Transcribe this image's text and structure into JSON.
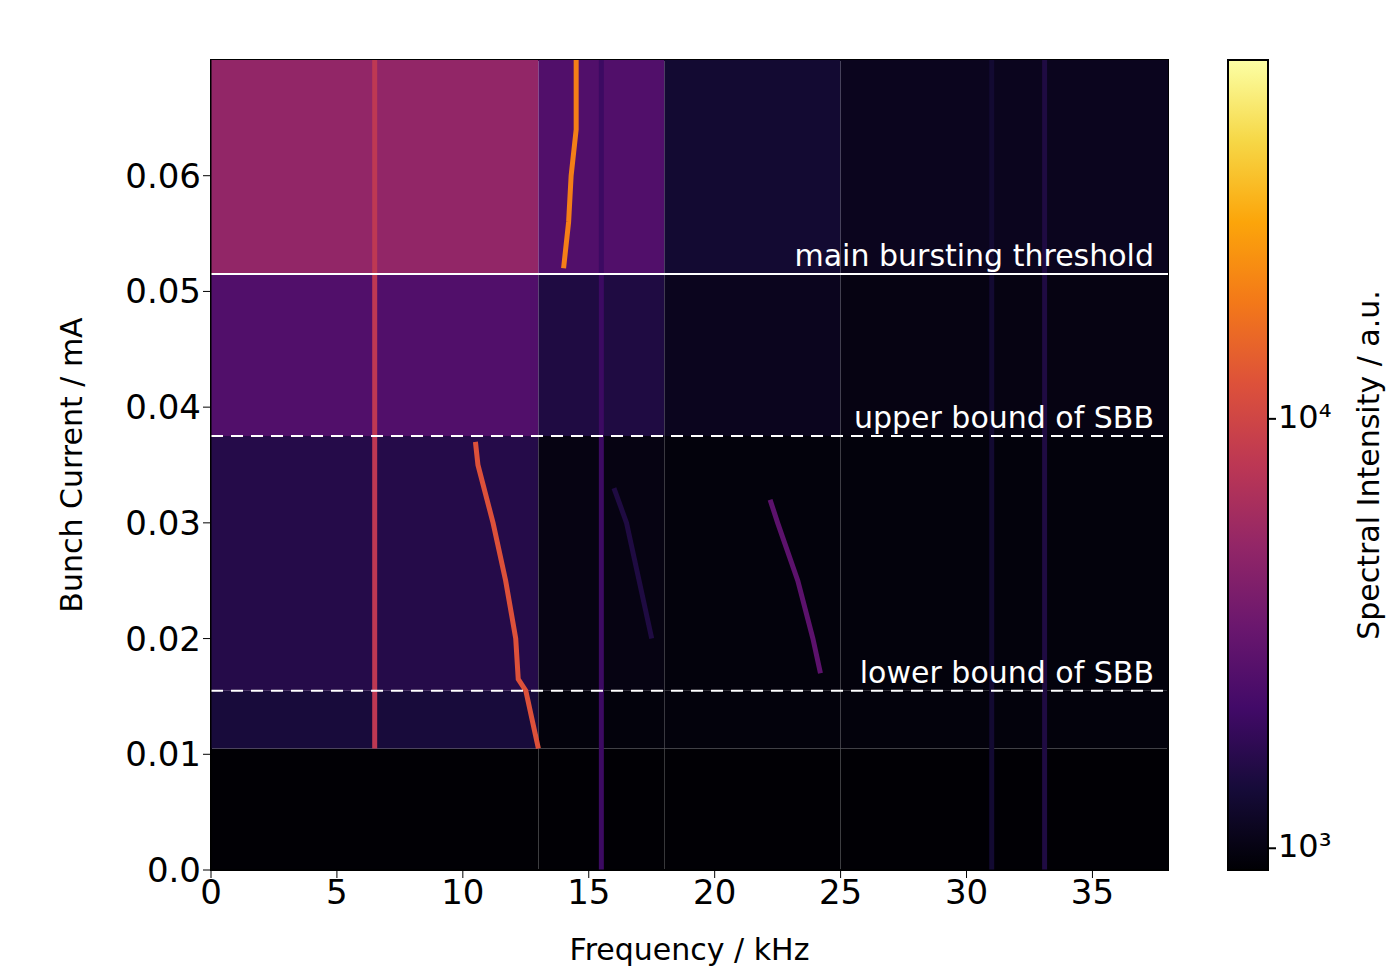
{
  "chart_data": {
    "type": "heatmap",
    "x_label": "Frequency / kHz",
    "y_label": "Bunch Current / mA",
    "xlim": [
      0,
      38
    ],
    "xticks": [
      0,
      5,
      10,
      15,
      20,
      25,
      30,
      35
    ],
    "ylim": [
      0,
      0.07
    ],
    "yticks": [
      {
        "value": 0,
        "label": "0.0"
      },
      0.01,
      0.02,
      0.03,
      0.04,
      0.05,
      0.06
    ],
    "x_edges": [
      0,
      13,
      18,
      25,
      38
    ],
    "y_edges": [
      0,
      0.0105,
      0.0155,
      0.0375,
      0.0515,
      0.07
    ],
    "cells": [
      [
        900,
        900,
        900,
        900
      ],
      [
        1400,
        950,
        950,
        950
      ],
      [
        1600,
        1000,
        950,
        950
      ],
      [
        2500,
        1500,
        1100,
        1000
      ],
      [
        5000,
        2500,
        1300,
        1100
      ]
    ],
    "lines": [
      {
        "x": [
          6.5,
          6.5
        ],
        "y": [
          0.0105,
          0.07
        ],
        "intensity": 8000
      },
      {
        "x": [
          15.5,
          15.5
        ],
        "y": [
          0,
          0.07
        ],
        "intensity": 2000
      },
      {
        "x": [
          31,
          31
        ],
        "y": [
          0,
          0.07
        ],
        "intensity": 1300
      },
      {
        "x": [
          33.1,
          33.1
        ],
        "y": [
          0,
          0.07
        ],
        "intensity": 1500
      },
      {
        "x": [
          13,
          12.5,
          12.2,
          12.1,
          11.7,
          11.2,
          10.6,
          10.5
        ],
        "y": [
          0.0105,
          0.0155,
          0.0165,
          0.02,
          0.025,
          0.03,
          0.035,
          0.037
        ],
        "intensity": 12000
      },
      {
        "x": [
          24.2,
          23.9,
          23.3,
          22.5,
          22.2
        ],
        "y": [
          0.017,
          0.02,
          0.025,
          0.03,
          0.032
        ],
        "intensity": 2800
      },
      {
        "x": [
          17.5,
          17,
          16.5,
          16
        ],
        "y": [
          0.02,
          0.025,
          0.03,
          0.033
        ],
        "intensity": 1500
      },
      {
        "x": [
          14,
          14.2,
          14.3,
          14.5,
          14.5
        ],
        "y": [
          0.052,
          0.056,
          0.06,
          0.064,
          0.07
        ],
        "intensity": 20000
      }
    ],
    "annotations": [
      {
        "text": "main bursting threshold",
        "y": 0.0515,
        "line_style": "solid"
      },
      {
        "text": "upper bound of SBB",
        "y": 0.0375,
        "line_style": "dashed"
      },
      {
        "text": "lower bound of SBB",
        "y": 0.0155,
        "line_style": "dashed"
      }
    ],
    "colorbar": {
      "label": "Spectral Intensity / a.u.",
      "log": true,
      "range": [
        890,
        68500
      ],
      "ticks": [
        {
          "value": 1000,
          "label": "10³"
        },
        {
          "value": 10000,
          "label": "10⁴"
        }
      ]
    }
  }
}
